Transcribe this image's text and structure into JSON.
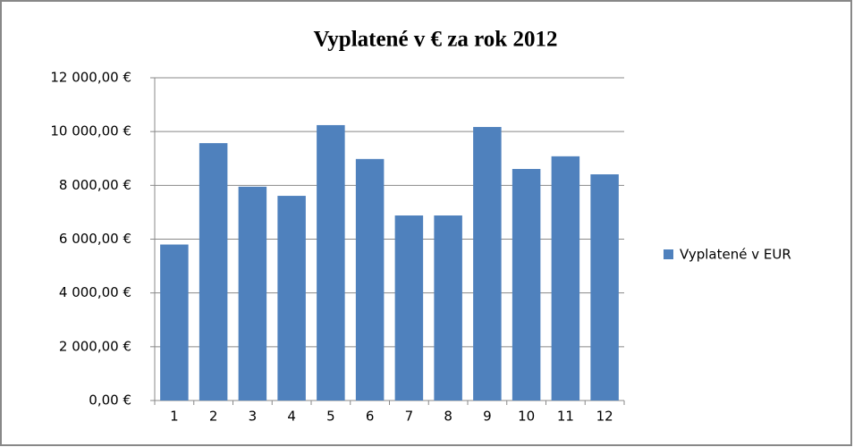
{
  "chart_data": {
    "type": "bar",
    "title": "Vyplatené v € za rok 2012",
    "categories": [
      "1",
      "2",
      "3",
      "4",
      "5",
      "6",
      "7",
      "8",
      "9",
      "10",
      "11",
      "12"
    ],
    "series": [
      {
        "name": "Vyplatené v EUR",
        "color": "#4f81bd",
        "values": [
          5800,
          9570,
          7950,
          7610,
          10240,
          8980,
          6880,
          6880,
          10170,
          8610,
          9080,
          8410
        ]
      }
    ],
    "ylim": [
      0,
      12000
    ],
    "yticks": [
      {
        "value": 0,
        "label": "0,00 €"
      },
      {
        "value": 2000,
        "label": "2 000,00 €"
      },
      {
        "value": 4000,
        "label": "4 000,00 €"
      },
      {
        "value": 6000,
        "label": "6 000,00 €"
      },
      {
        "value": 8000,
        "label": "8 000,00 €"
      },
      {
        "value": 10000,
        "label": "10 000,00 €"
      },
      {
        "value": 12000,
        "label": "12 000,00 €"
      }
    ],
    "grid": true,
    "legend": "right"
  }
}
